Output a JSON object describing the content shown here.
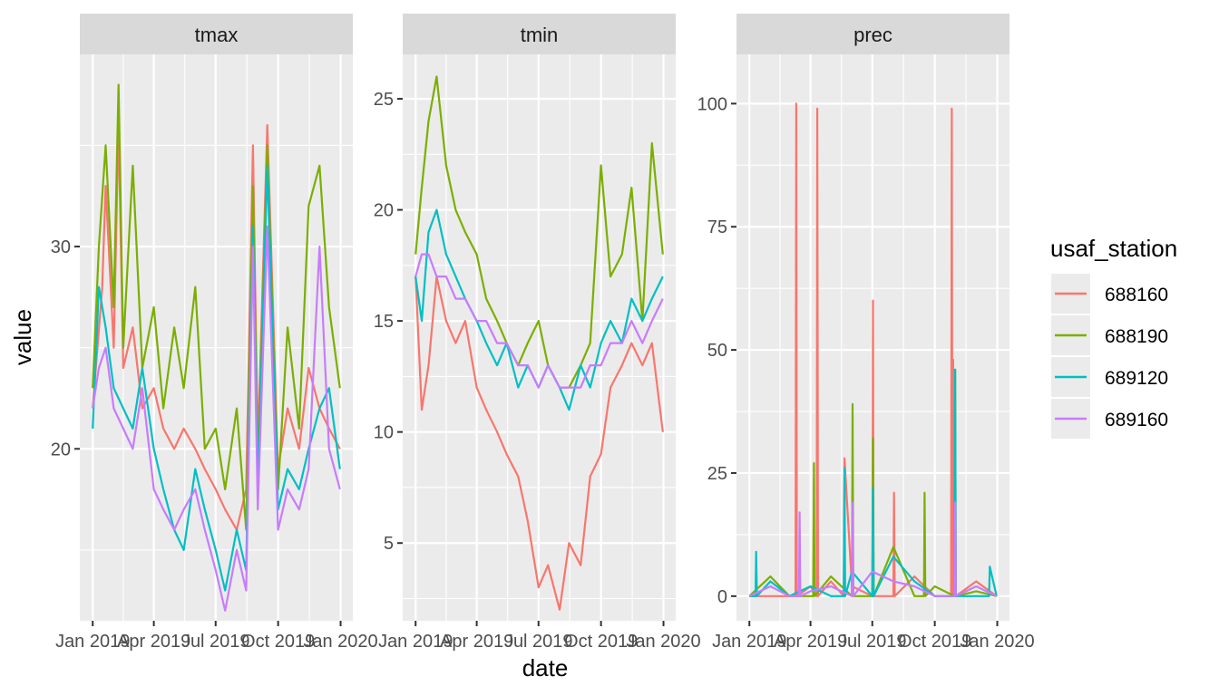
{
  "chart_data": {
    "type": "line",
    "xlabel": "date",
    "ylabel": "value",
    "x_ticks": [
      "Jan 2019",
      "Apr 2019",
      "Jul 2019",
      "Oct 2019",
      "Jan 2020"
    ],
    "x_tick_dates": [
      "2019-01-01",
      "2019-04-01",
      "2019-07-01",
      "2019-10-01",
      "2020-01-01"
    ],
    "x_range": [
      "2018-12-13",
      "2020-01-19"
    ],
    "legend": {
      "title": "usaf_station",
      "placement": "right",
      "entries": [
        {
          "name": "688160",
          "color": "#F8766D"
        },
        {
          "name": "688190",
          "color": "#7CAE00"
        },
        {
          "name": "689120",
          "color": "#00BFC4"
        },
        {
          "name": "689160",
          "color": "#C77CFF"
        }
      ]
    },
    "facets": [
      {
        "title": "tmax",
        "ylim": [
          11.5,
          39.5
        ],
        "y_ticks": [
          20,
          30
        ],
        "series": [
          {
            "name": "688160",
            "x": [
              "2019-01-01",
              "2019-01-15",
              "2019-01-20",
              "2019-02-01",
              "2019-02-08",
              "2019-02-15",
              "2019-03-01",
              "2019-03-15",
              "2019-04-01",
              "2019-04-15",
              "2019-05-01",
              "2019-05-15",
              "2019-06-01",
              "2019-06-15",
              "2019-07-01",
              "2019-07-15",
              "2019-08-01",
              "2019-08-15",
              "2019-08-25",
              "2019-09-01",
              "2019-09-15",
              "2019-10-01",
              "2019-10-15",
              "2019-11-01",
              "2019-11-15",
              "2019-12-01",
              "2019-12-15",
              "2019-12-31"
            ],
            "y": [
              22,
              28,
              33,
              25,
              36,
              24,
              26,
              22,
              23,
              21,
              20,
              21,
              20,
              19,
              18,
              17,
              16,
              18,
              35,
              20,
              36,
              19,
              22,
              20,
              24,
              22,
              21,
              20
            ]
          },
          {
            "name": "688190",
            "x": [
              "2019-01-01",
              "2019-01-10",
              "2019-01-20",
              "2019-02-01",
              "2019-02-08",
              "2019-02-15",
              "2019-03-01",
              "2019-03-15",
              "2019-04-01",
              "2019-04-15",
              "2019-05-01",
              "2019-05-15",
              "2019-06-01",
              "2019-06-15",
              "2019-07-01",
              "2019-07-15",
              "2019-08-01",
              "2019-08-15",
              "2019-08-25",
              "2019-09-01",
              "2019-09-15",
              "2019-10-01",
              "2019-10-15",
              "2019-11-01",
              "2019-11-15",
              "2019-12-01",
              "2019-12-15",
              "2019-12-31"
            ],
            "y": [
              23,
              30,
              35,
              27,
              38,
              25,
              34,
              24,
              27,
              22,
              26,
              23,
              28,
              20,
              21,
              18,
              22,
              16,
              33,
              19,
              35,
              18,
              26,
              21,
              32,
              34,
              27,
              23
            ]
          },
          {
            "name": "689120",
            "x": [
              "2019-01-01",
              "2019-01-10",
              "2019-01-20",
              "2019-02-01",
              "2019-02-15",
              "2019-03-01",
              "2019-03-15",
              "2019-04-01",
              "2019-04-15",
              "2019-05-01",
              "2019-05-15",
              "2019-06-01",
              "2019-06-15",
              "2019-07-01",
              "2019-07-15",
              "2019-08-01",
              "2019-08-15",
              "2019-08-25",
              "2019-09-01",
              "2019-09-15",
              "2019-10-01",
              "2019-10-15",
              "2019-11-01",
              "2019-11-15",
              "2019-12-01",
              "2019-12-15",
              "2019-12-31"
            ],
            "y": [
              21,
              28,
              26,
              23,
              22,
              21,
              24,
              20,
              18,
              16,
              15,
              19,
              17,
              15,
              13,
              16,
              14,
              31,
              18,
              34,
              17,
              19,
              18,
              20,
              22,
              23,
              19
            ]
          },
          {
            "name": "689160",
            "x": [
              "2019-01-01",
              "2019-01-10",
              "2019-01-20",
              "2019-02-01",
              "2019-02-15",
              "2019-03-01",
              "2019-03-15",
              "2019-04-01",
              "2019-04-15",
              "2019-05-01",
              "2019-05-15",
              "2019-06-01",
              "2019-06-15",
              "2019-07-01",
              "2019-07-15",
              "2019-08-01",
              "2019-08-15",
              "2019-08-25",
              "2019-09-01",
              "2019-09-15",
              "2019-10-01",
              "2019-10-15",
              "2019-11-01",
              "2019-11-15",
              "2019-12-01",
              "2019-12-15",
              "2019-12-31"
            ],
            "y": [
              22,
              24,
              25,
              22,
              21,
              20,
              23,
              18,
              17,
              16,
              17,
              18,
              16,
              14,
              12,
              15,
              13,
              30,
              17,
              31,
              16,
              18,
              17,
              19,
              30,
              20,
              18
            ]
          }
        ]
      },
      {
        "title": "tmin",
        "ylim": [
          1.5,
          27
        ],
        "y_ticks": [
          5,
          10,
          15,
          20,
          25
        ],
        "series": [
          {
            "name": "688160",
            "x": [
              "2019-01-01",
              "2019-01-10",
              "2019-01-20",
              "2019-02-01",
              "2019-02-15",
              "2019-03-01",
              "2019-03-15",
              "2019-04-01",
              "2019-04-15",
              "2019-05-01",
              "2019-05-15",
              "2019-06-01",
              "2019-06-15",
              "2019-07-01",
              "2019-07-15",
              "2019-08-01",
              "2019-08-15",
              "2019-09-01",
              "2019-09-15",
              "2019-10-01",
              "2019-10-15",
              "2019-11-01",
              "2019-11-15",
              "2019-12-01",
              "2019-12-15",
              "2019-12-31"
            ],
            "y": [
              17,
              11,
              13,
              17,
              15,
              14,
              15,
              12,
              11,
              10,
              9,
              8,
              6,
              3,
              4,
              2,
              5,
              4,
              8,
              9,
              12,
              13,
              14,
              13,
              14,
              10
            ]
          },
          {
            "name": "688190",
            "x": [
              "2019-01-01",
              "2019-01-10",
              "2019-01-20",
              "2019-02-01",
              "2019-02-15",
              "2019-03-01",
              "2019-03-15",
              "2019-04-01",
              "2019-04-15",
              "2019-05-01",
              "2019-05-15",
              "2019-06-01",
              "2019-06-15",
              "2019-07-01",
              "2019-07-15",
              "2019-08-01",
              "2019-08-15",
              "2019-09-01",
              "2019-09-15",
              "2019-10-01",
              "2019-10-15",
              "2019-11-01",
              "2019-11-15",
              "2019-12-01",
              "2019-12-15",
              "2019-12-31"
            ],
            "y": [
              18,
              21,
              24,
              26,
              22,
              20,
              19,
              18,
              16,
              15,
              14,
              13,
              14,
              15,
              13,
              12,
              12,
              13,
              14,
              22,
              17,
              18,
              21,
              15,
              23,
              18
            ]
          },
          {
            "name": "689120",
            "x": [
              "2019-01-01",
              "2019-01-10",
              "2019-01-20",
              "2019-02-01",
              "2019-02-15",
              "2019-03-01",
              "2019-03-15",
              "2019-04-01",
              "2019-04-15",
              "2019-05-01",
              "2019-05-15",
              "2019-06-01",
              "2019-06-15",
              "2019-07-01",
              "2019-07-15",
              "2019-08-01",
              "2019-08-15",
              "2019-09-01",
              "2019-09-15",
              "2019-10-01",
              "2019-10-15",
              "2019-11-01",
              "2019-11-15",
              "2019-12-01",
              "2019-12-15",
              "2019-12-31"
            ],
            "y": [
              17,
              15,
              19,
              20,
              18,
              17,
              16,
              15,
              14,
              13,
              14,
              12,
              13,
              12,
              13,
              12,
              11,
              13,
              12,
              14,
              15,
              14,
              16,
              15,
              16,
              17
            ]
          },
          {
            "name": "689160",
            "x": [
              "2019-01-01",
              "2019-01-10",
              "2019-01-20",
              "2019-02-01",
              "2019-02-15",
              "2019-03-01",
              "2019-03-15",
              "2019-04-01",
              "2019-04-15",
              "2019-05-01",
              "2019-05-15",
              "2019-06-01",
              "2019-06-15",
              "2019-07-01",
              "2019-07-15",
              "2019-08-01",
              "2019-08-15",
              "2019-09-01",
              "2019-09-15",
              "2019-10-01",
              "2019-10-15",
              "2019-11-01",
              "2019-11-15",
              "2019-12-01",
              "2019-12-15",
              "2019-12-31"
            ],
            "y": [
              17,
              18,
              18,
              17,
              17,
              16,
              16,
              15,
              15,
              14,
              14,
              13,
              13,
              12,
              13,
              12,
              12,
              12,
              13,
              13,
              14,
              14,
              15,
              14,
              15,
              16
            ]
          }
        ]
      },
      {
        "title": "prec",
        "ylim": [
          -5,
          110
        ],
        "y_ticks": [
          0,
          25,
          50,
          75,
          100
        ],
        "series": [
          {
            "name": "688160",
            "x": [
              "2019-01-01",
              "2019-02-01",
              "2019-03-10",
              "2019-03-11",
              "2019-03-12",
              "2019-04-01",
              "2019-04-10",
              "2019-04-11",
              "2019-04-12",
              "2019-05-01",
              "2019-05-20",
              "2019-05-21",
              "2019-06-01",
              "2019-07-01",
              "2019-07-02",
              "2019-07-03",
              "2019-08-01",
              "2019-08-02",
              "2019-08-03",
              "2019-09-01",
              "2019-10-01",
              "2019-10-25",
              "2019-10-26",
              "2019-10-27",
              "2019-10-28",
              "2019-10-29",
              "2019-11-01",
              "2019-12-01",
              "2019-12-31"
            ],
            "y": [
              0,
              0,
              0,
              100,
              0,
              2,
              0,
              99,
              0,
              3,
              0,
              28,
              2,
              0,
              60,
              0,
              0,
              21,
              0,
              4,
              0,
              0,
              99,
              0,
              48,
              0,
              0,
              3,
              0
            ]
          },
          {
            "name": "688190",
            "x": [
              "2019-01-01",
              "2019-02-01",
              "2019-03-01",
              "2019-04-01",
              "2019-04-05",
              "2019-04-06",
              "2019-04-07",
              "2019-05-01",
              "2019-06-01",
              "2019-06-02",
              "2019-06-03",
              "2019-07-01",
              "2019-07-02",
              "2019-07-03",
              "2019-08-01",
              "2019-09-01",
              "2019-09-15",
              "2019-09-16",
              "2019-09-17",
              "2019-10-01",
              "2019-10-30",
              "2019-10-31",
              "2019-11-01",
              "2019-12-01",
              "2019-12-31"
            ],
            "y": [
              0,
              4,
              0,
              0,
              0,
              27,
              0,
              4,
              0,
              39,
              0,
              0,
              32,
              0,
              10,
              0,
              0,
              21,
              0,
              2,
              0,
              46,
              0,
              1,
              0
            ]
          },
          {
            "name": "689120",
            "x": [
              "2019-01-01",
              "2019-01-10",
              "2019-01-11",
              "2019-01-12",
              "2019-02-01",
              "2019-03-01",
              "2019-04-01",
              "2019-05-01",
              "2019-05-20",
              "2019-05-21",
              "2019-05-22",
              "2019-06-01",
              "2019-07-01",
              "2019-07-02",
              "2019-07-03",
              "2019-08-01",
              "2019-09-01",
              "2019-10-01",
              "2019-10-30",
              "2019-10-31",
              "2019-11-01",
              "2019-12-01",
              "2019-12-20",
              "2019-12-21",
              "2019-12-31"
            ],
            "y": [
              0,
              0,
              9,
              0,
              3,
              0,
              2,
              0,
              0,
              26,
              0,
              5,
              0,
              22,
              0,
              8,
              3,
              0,
              0,
              46,
              0,
              0,
              0,
              6,
              0
            ]
          },
          {
            "name": "689160",
            "x": [
              "2019-01-01",
              "2019-02-01",
              "2019-03-01",
              "2019-03-15",
              "2019-03-16",
              "2019-03-17",
              "2019-04-01",
              "2019-05-01",
              "2019-06-01",
              "2019-06-02",
              "2019-06-03",
              "2019-07-01",
              "2019-08-01",
              "2019-09-01",
              "2019-10-01",
              "2019-10-30",
              "2019-10-31",
              "2019-11-01",
              "2019-12-01",
              "2019-12-31"
            ],
            "y": [
              0,
              2,
              0,
              0,
              17,
              0,
              1,
              2,
              0,
              19,
              0,
              5,
              3,
              2,
              0,
              0,
              19,
              0,
              2,
              0
            ]
          }
        ]
      }
    ]
  }
}
